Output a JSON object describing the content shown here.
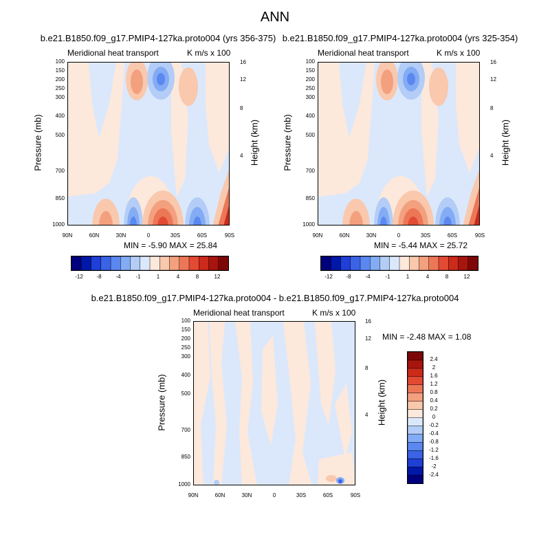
{
  "figure_title": "ANN",
  "panels": [
    {
      "case": "b.e21.B1850.f09_g17.PMIP4-127ka.proto004 (yrs 356-375)",
      "field": "Meridional heat transport",
      "units": "K m/s x 100",
      "stats": "MIN =  -5.90   MAX =  25.84"
    },
    {
      "case": "b.e21.B1850.f09_g17.PMIP4-127ka.proto004 (yrs 325-354)",
      "field": "Meridional heat transport",
      "units": "K m/s x 100",
      "stats": "MIN =  -5.44   MAX =  25.72"
    },
    {
      "case": "b.e21.B1850.f09_g17.PMIP4-127ka.proto004 - b.e21.B1850.f09_g17.PMIP4-127ka.proto004",
      "field": "Meridional heat transport",
      "units": "K m/s x 100",
      "stats": "MIN =  -2.48   MAX =   1.08"
    }
  ],
  "axes": {
    "ylabel": "Pressure (mb)",
    "ylabel_right": "Height (km)",
    "pressure_ticks": [
      "100",
      "150",
      "200",
      "250",
      "300",
      "400",
      "500",
      "700",
      "850",
      "1000"
    ],
    "height_ticks": [
      "16",
      "12",
      "8",
      "4"
    ],
    "lat_ticks": [
      "90N",
      "60N",
      "30N",
      "0",
      "30S",
      "60S",
      "90S"
    ]
  },
  "colorbar_top": {
    "labels": [
      "-12",
      "-8",
      "-4",
      "-1",
      "1",
      "4",
      "8",
      "12"
    ],
    "colors": [
      "#00007d",
      "#0018a8",
      "#1f3fd6",
      "#3a63e6",
      "#5b88f0",
      "#84acf5",
      "#b3cdf7",
      "#dbe8fb",
      "#fde8dc",
      "#f9c8ad",
      "#f3a07f",
      "#ec7757",
      "#e34a33",
      "#cc2a1a",
      "#a8150e",
      "#7d0707"
    ]
  },
  "colorbar_diff": {
    "labels": [
      "2.4",
      "2",
      "1.6",
      "1.2",
      "0.8",
      "0.4",
      "0.2",
      "0",
      "-0.2",
      "-0.4",
      "-0.8",
      "-1.2",
      "-1.6",
      "-2",
      "-2.4"
    ],
    "colors": [
      "#7d0707",
      "#a8150e",
      "#cc2a1a",
      "#e34a33",
      "#ec7757",
      "#f3a07f",
      "#f9c8ad",
      "#fde8dc",
      "#dbe8fb",
      "#b3cdf7",
      "#84acf5",
      "#5b88f0",
      "#3a63e6",
      "#1f3fd6",
      "#0018a8",
      "#00007d"
    ]
  },
  "chart_data": [
    {
      "type": "heatmap",
      "title": "b.e21.B1850.f09_g17.PMIP4-127ka.proto004 (yrs 356-375)",
      "xlabel": "",
      "ylabel": "Pressure (mb)",
      "x_ticks": [
        "90N",
        "60N",
        "30N",
        "0",
        "30S",
        "60S",
        "90S"
      ],
      "y_ticks": [
        100,
        150,
        200,
        250,
        300,
        400,
        500,
        700,
        850,
        1000
      ],
      "min": -5.9,
      "max": 25.84
    },
    {
      "type": "heatmap",
      "title": "b.e21.B1850.f09_g17.PMIP4-127ka.proto004 (yrs 325-354)",
      "xlabel": "",
      "ylabel": "Pressure (mb)",
      "x_ticks": [
        "90N",
        "60N",
        "30N",
        "0",
        "30S",
        "60S",
        "90S"
      ],
      "y_ticks": [
        100,
        150,
        200,
        250,
        300,
        400,
        500,
        700,
        850,
        1000
      ],
      "min": -5.44,
      "max": 25.72
    },
    {
      "type": "heatmap",
      "title": "b.e21.B1850.f09_g17.PMIP4-127ka.proto004 - b.e21.B1850.f09_g17.PMIP4-127ka.proto004",
      "xlabel": "",
      "ylabel": "Pressure (mb)",
      "x_ticks": [
        "90N",
        "60N",
        "30N",
        "0",
        "30S",
        "60S",
        "90S"
      ],
      "y_ticks": [
        100,
        150,
        200,
        250,
        300,
        400,
        500,
        700,
        850,
        1000
      ],
      "min": -2.48,
      "max": 1.08
    }
  ]
}
